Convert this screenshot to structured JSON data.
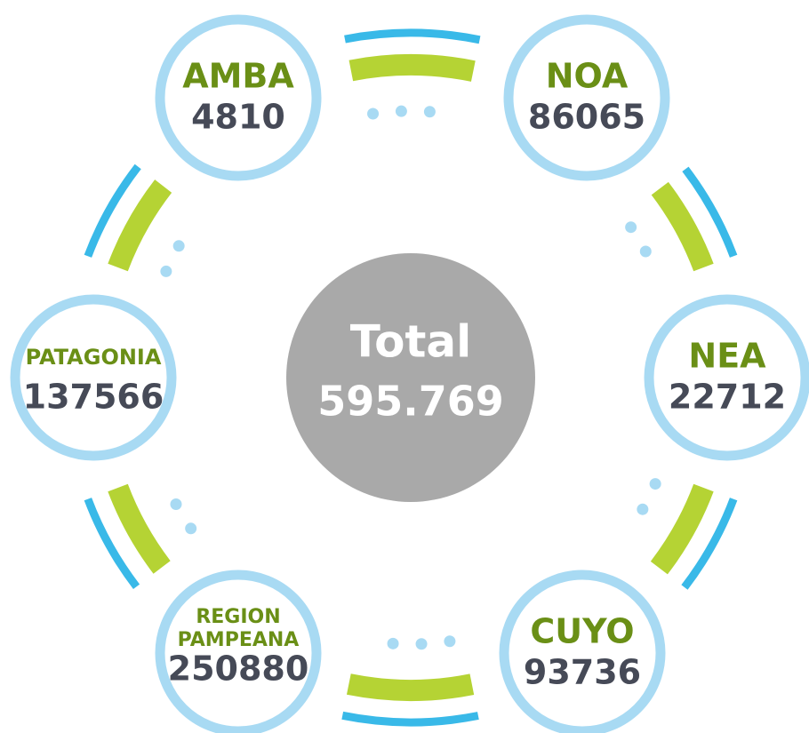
{
  "center": {
    "label": "Total",
    "value": "595.769"
  },
  "nodes": [
    {
      "label": "AMBA",
      "value": "4810"
    },
    {
      "label": "NOA",
      "value": "86065"
    },
    {
      "label": "NEA",
      "value": "22712"
    },
    {
      "label": "CUYO",
      "value": "93736"
    },
    {
      "label": "REGION PAMPEANA",
      "value": "250880"
    },
    {
      "label": "PATAGONIA",
      "value": "137566"
    }
  ]
}
